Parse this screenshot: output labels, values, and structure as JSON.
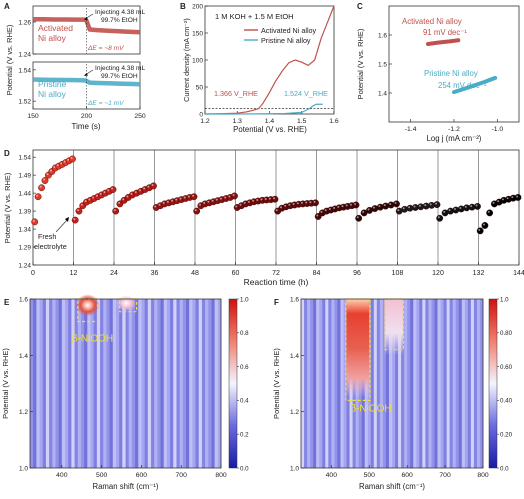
{
  "figure": {
    "panel_labels": [
      "A",
      "B",
      "C",
      "D",
      "E",
      "F"
    ]
  },
  "chart_data": [
    {
      "panel": "A",
      "type": "line",
      "ylabel": "Potential (V vs. RHE)",
      "xlabel": "Time (s)",
      "xlim": [
        150,
        250
      ],
      "x_ticks": [
        "150",
        "200",
        "250"
      ],
      "subplots": [
        {
          "name": "Activated Ni alloy",
          "label_lines": [
            "Activated",
            "Ni alloy"
          ],
          "ylim": [
            1.24,
            1.27
          ],
          "y_ticks": [
            "1.24",
            "1.26"
          ],
          "annotation": [
            "Injecting 4.38 mL",
            "99.7% EtOH"
          ],
          "delta_label": "ΔE = ~8 mV",
          "color": "#c0504d",
          "x": [
            150,
            160,
            170,
            180,
            190,
            198,
            200,
            203,
            210,
            220,
            230,
            240,
            250
          ],
          "y": [
            1.2617,
            1.2617,
            1.2616,
            1.2616,
            1.2615,
            1.2615,
            1.2608,
            1.2553,
            1.2549,
            1.2545,
            1.2542,
            1.2539,
            1.2536
          ]
        },
        {
          "name": "Pristine Ni alloy",
          "label_lines": [
            "Pristine",
            "Ni alloy"
          ],
          "ylim": [
            1.515,
            1.545
          ],
          "y_ticks": [
            "1.52",
            "1.54"
          ],
          "annotation": [
            "Injecting 4.38 mL",
            "99.7% EtOH"
          ],
          "delta_label": "ΔE = ~1 mV",
          "color": "#4bacc6",
          "x": [
            150,
            160,
            170,
            180,
            190,
            198,
            200,
            203,
            210,
            220,
            230,
            240,
            250
          ],
          "y": [
            1.5338,
            1.5337,
            1.5336,
            1.5335,
            1.5334,
            1.5333,
            1.5329,
            1.5318,
            1.5316,
            1.5314,
            1.5312,
            1.531,
            1.5308
          ]
        }
      ]
    },
    {
      "panel": "B",
      "type": "line",
      "title": "1 M KOH + 1.5 M EtOH",
      "xlabel": "Potential (V vs. RHE)",
      "ylabel": "Current density (mA cm⁻²)",
      "xlim": [
        1.2,
        1.6
      ],
      "ylim": [
        0,
        200
      ],
      "x_ticks": [
        "1.2",
        "1.3",
        "1.4",
        "1.5",
        "1.6"
      ],
      "y_ticks": [
        "0",
        "50",
        "100",
        "150",
        "200"
      ],
      "reference_line": 10,
      "annotations": [
        "1.366 V_RHE",
        "1.524 V_RHE"
      ],
      "series": [
        {
          "name": "Activated Ni alloy",
          "color": "#c0504d",
          "x": [
            1.2,
            1.25,
            1.3,
            1.33,
            1.35,
            1.366,
            1.38,
            1.4,
            1.42,
            1.44,
            1.46,
            1.48,
            1.5,
            1.52,
            1.54,
            1.56,
            1.58,
            1.6
          ],
          "y": [
            0,
            0.5,
            1.5,
            4,
            7,
            10,
            20,
            40,
            62,
            80,
            95,
            100,
            96,
            90,
            100,
            140,
            170,
            205
          ]
        },
        {
          "name": "Pristine Ni alloy",
          "color": "#4bacc6",
          "x": [
            1.2,
            1.3,
            1.4,
            1.45,
            1.5,
            1.51,
            1.524,
            1.535,
            1.545,
            1.555,
            1.565
          ],
          "y": [
            0,
            0,
            0.5,
            1,
            3,
            6,
            10,
            15,
            18,
            18,
            18
          ]
        }
      ]
    },
    {
      "panel": "C",
      "type": "scatter",
      "xlabel": "Log j (mA cm⁻²)",
      "ylabel": "Potential (V vs. RHE)",
      "xlim": [
        -1.5,
        -0.9
      ],
      "ylim": [
        1.3,
        1.7
      ],
      "x_ticks": [
        "-1.4",
        "-1.2",
        "-1.0"
      ],
      "y_ticks": [
        "1.4",
        "1.5",
        "1.6"
      ],
      "series": [
        {
          "name": "Activated Ni alloy",
          "slope_label": "91 mV dec⁻¹",
          "color": "#c0504d",
          "x": [
            -1.32,
            -1.27,
            -1.22,
            -1.18
          ],
          "y": [
            1.569,
            1.574,
            1.578,
            1.582
          ]
        },
        {
          "name": "Pristine Ni alloy",
          "slope_label": "254 mV dec⁻¹",
          "color": "#4bacc6",
          "x": [
            -1.2,
            -1.13,
            -1.06,
            -1.01
          ],
          "y": [
            1.403,
            1.42,
            1.438,
            1.452
          ]
        }
      ]
    },
    {
      "panel": "D",
      "type": "scatter",
      "xlabel": "Reaction time (h)",
      "ylabel": "Potential (V vs. RHE)",
      "xlim": [
        0,
        144
      ],
      "ylim": [
        1.24,
        1.56
      ],
      "x_ticks": [
        "0",
        "12",
        "24",
        "36",
        "48",
        "60",
        "72",
        "84",
        "96",
        "108",
        "120",
        "132",
        "144"
      ],
      "y_ticks": [
        "1.24",
        "1.29",
        "1.34",
        "1.39",
        "1.44",
        "1.49",
        "1.54"
      ],
      "annotation": [
        "Fresh",
        "electrolyte"
      ],
      "cycles": [
        {
          "start": 0,
          "values": [
            1.36,
            1.43,
            1.455,
            1.475,
            1.49,
            1.5,
            1.51,
            1.515,
            1.52,
            1.525,
            1.53,
            1.535
          ],
          "color": "#e03a2a"
        },
        {
          "start": 12,
          "values": [
            1.365,
            1.39,
            1.405,
            1.415,
            1.42,
            1.425,
            1.43,
            1.435,
            1.44,
            1.445,
            1.45
          ],
          "color": "#c8211b"
        },
        {
          "start": 24,
          "values": [
            1.39,
            1.41,
            1.42,
            1.428,
            1.435,
            1.44,
            1.445,
            1.45,
            1.455,
            1.46
          ],
          "color": "#b01a16"
        },
        {
          "start": 36,
          "values": [
            1.4,
            1.405,
            1.41,
            1.413,
            1.416,
            1.419,
            1.422,
            1.425,
            1.428,
            1.43
          ],
          "color": "#9a1512"
        },
        {
          "start": 48,
          "values": [
            1.39,
            1.405,
            1.41,
            1.413,
            1.416,
            1.419,
            1.422,
            1.425,
            1.428,
            1.432
          ],
          "color": "#87110f"
        },
        {
          "start": 60,
          "values": [
            1.4,
            1.405,
            1.41,
            1.413,
            1.416,
            1.418,
            1.42,
            1.421,
            1.422,
            1.423
          ],
          "color": "#700d0c"
        },
        {
          "start": 72,
          "values": [
            1.39,
            1.398,
            1.402,
            1.405,
            1.407,
            1.409,
            1.41,
            1.411,
            1.412,
            1.413
          ],
          "color": "#5a0a0a"
        },
        {
          "start": 84,
          "values": [
            1.375,
            1.385,
            1.39,
            1.393,
            1.396,
            1.399,
            1.401,
            1.403,
            1.405,
            1.407
          ],
          "color": "#420808"
        },
        {
          "start": 96,
          "values": [
            1.37,
            1.385,
            1.392,
            1.397,
            1.401,
            1.404,
            1.407,
            1.41
          ],
          "color": "#2a0606"
        },
        {
          "start": 108,
          "values": [
            1.39,
            1.395,
            1.398,
            1.4,
            1.402,
            1.404,
            1.406,
            1.408
          ],
          "color": "#1a1a1a"
        },
        {
          "start": 120,
          "values": [
            1.37,
            1.385,
            1.39,
            1.393,
            1.396,
            1.399,
            1.401,
            1.403
          ],
          "color": "#111111"
        },
        {
          "start": 132,
          "values": [
            1.335,
            1.35,
            1.385,
            1.41,
            1.415,
            1.42,
            1.423,
            1.426,
            1.428
          ],
          "color": "#000000"
        }
      ]
    },
    {
      "panel": "E",
      "type": "heatmap",
      "xlabel": "Raman shift (cm⁻¹)",
      "ylabel": "Potential (V vs. RHE)",
      "xlim": [
        320,
        800
      ],
      "ylim": [
        1.0,
        1.6
      ],
      "x_ticks": [
        "400",
        "500",
        "600",
        "700",
        "800"
      ],
      "y_ticks": [
        "1.0",
        "1.2",
        "1.4",
        "1.6"
      ],
      "colorbar_ticks": [
        "0.0",
        "0.2",
        "0.4",
        "0.6",
        "0.8",
        "1.0"
      ],
      "annotation": "β-NiOOH",
      "hotspots": [
        {
          "x": 465,
          "y": 1.58,
          "intensity": 0.95
        },
        {
          "x": 565,
          "y": 1.585,
          "intensity": 0.55
        }
      ]
    },
    {
      "panel": "F",
      "type": "heatmap",
      "xlabel": "Raman shift (cm⁻¹)",
      "ylabel": "Potential (V vs. RHE)",
      "xlim": [
        320,
        800
      ],
      "ylim": [
        1.0,
        1.6
      ],
      "x_ticks": [
        "400",
        "500",
        "600",
        "700",
        "800"
      ],
      "y_ticks": [
        "1.0",
        "1.2",
        "1.4",
        "1.6"
      ],
      "colorbar_ticks": [
        "0.0",
        "0.20",
        "0.40",
        "0.60",
        "0.80",
        "1.0"
      ],
      "annotation": "β-NiOOH",
      "hotspots": [
        {
          "x": 468,
          "y": 1.45,
          "intensity": 1.0
        },
        {
          "x": 560,
          "y": 1.5,
          "intensity": 0.6
        }
      ]
    }
  ]
}
